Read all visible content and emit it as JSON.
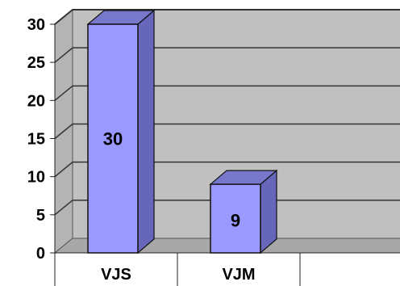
{
  "chart_data": {
    "type": "bar",
    "categories": [
      "VJS",
      "VJM",
      ""
    ],
    "values": [
      30,
      9,
      null
    ],
    "data_labels": [
      "30",
      "9",
      ""
    ],
    "yticks": [
      "0",
      "5",
      "10",
      "15",
      "20",
      "25",
      "30"
    ],
    "ylim": [
      0,
      30
    ],
    "grid": true,
    "legend": "none",
    "colors": {
      "bar_front": "#9999ff",
      "bar_side": "#6666bb",
      "bar_top": "#7777cc",
      "wall": "#c0c0c0",
      "floor": "#a8a8a8",
      "gridline": "#333333"
    }
  }
}
